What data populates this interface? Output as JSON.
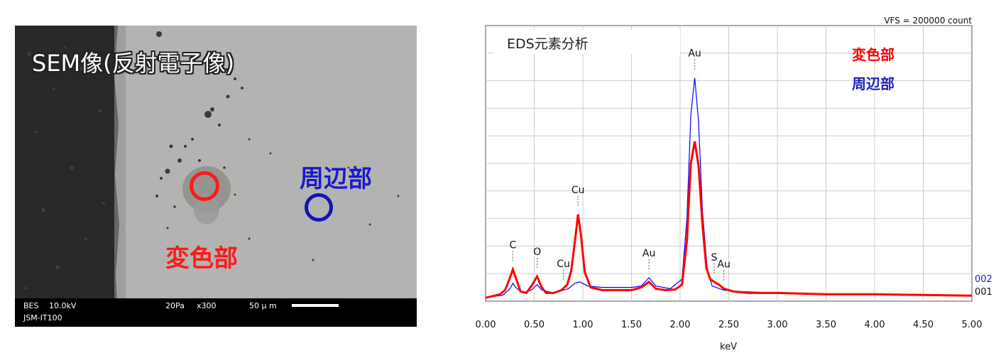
{
  "sem": {
    "title": "SEM像(反射電子像)",
    "label_discolored": "変色部",
    "label_peripheral": "周辺部",
    "info_mode": "BES",
    "info_kv": "10.0kV",
    "info_model": "JSM-IT100",
    "info_pressure": "20Pa",
    "info_mag": "x300",
    "info_scale": "50 μ m",
    "colors": {
      "discolored": "#ff1a1a",
      "peripheral": "#1414b4"
    }
  },
  "eds": {
    "title": "EDS元素分析",
    "vfs": "VFS = 200000 count",
    "legend_discolored": "変色部",
    "legend_peripheral": "周辺部",
    "trace_label_peripheral": "002",
    "trace_label_discolored": "001"
  },
  "chart_data": {
    "type": "line",
    "title": "EDS元素分析",
    "xlabel": "keV",
    "ylabel": "",
    "xlim": [
      0,
      5
    ],
    "ylim": [
      0,
      200000
    ],
    "grid": true,
    "x_ticks": [
      "0.00",
      "0.50",
      "1.00",
      "1.50",
      "2.00",
      "2.50",
      "3.00",
      "3.50",
      "4.00",
      "4.50",
      "5.00"
    ],
    "legend": {
      "position": "top-right",
      "entries": [
        "変色部",
        "周辺部"
      ]
    },
    "annotations": [
      {
        "text": "C",
        "x": 0.28
      },
      {
        "text": "O",
        "x": 0.53
      },
      {
        "text": "Cu",
        "x": 0.8
      },
      {
        "text": "Cu",
        "x": 0.95
      },
      {
        "text": "Au",
        "x": 1.68
      },
      {
        "text": "Au",
        "x": 2.15
      },
      {
        "text": "S",
        "x": 2.35
      },
      {
        "text": "Au",
        "x": 2.45
      }
    ],
    "series": [
      {
        "name": "変色部",
        "color": "#ff0000",
        "points": [
          [
            0,
            2400
          ],
          [
            0.15,
            5000
          ],
          [
            0.2,
            8000
          ],
          [
            0.25,
            17000
          ],
          [
            0.28,
            23000
          ],
          [
            0.31,
            17000
          ],
          [
            0.36,
            7000
          ],
          [
            0.42,
            6000
          ],
          [
            0.48,
            12000
          ],
          [
            0.53,
            18000
          ],
          [
            0.57,
            11000
          ],
          [
            0.62,
            6000
          ],
          [
            0.7,
            6000
          ],
          [
            0.78,
            8000
          ],
          [
            0.84,
            12000
          ],
          [
            0.88,
            22000
          ],
          [
            0.92,
            44000
          ],
          [
            0.95,
            63000
          ],
          [
            0.98,
            48000
          ],
          [
            1.02,
            21000
          ],
          [
            1.08,
            10000
          ],
          [
            1.2,
            8000
          ],
          [
            1.4,
            8000
          ],
          [
            1.5,
            8000
          ],
          [
            1.6,
            10000
          ],
          [
            1.68,
            14000
          ],
          [
            1.75,
            9000
          ],
          [
            1.85,
            8000
          ],
          [
            1.95,
            8500
          ],
          [
            2.02,
            12000
          ],
          [
            2.07,
            44000
          ],
          [
            2.11,
            100000
          ],
          [
            2.15,
            116000
          ],
          [
            2.19,
            98000
          ],
          [
            2.23,
            55000
          ],
          [
            2.27,
            24000
          ],
          [
            2.31,
            16000
          ],
          [
            2.35,
            14000
          ],
          [
            2.4,
            12000
          ],
          [
            2.45,
            9000
          ],
          [
            2.55,
            7000
          ],
          [
            2.7,
            6000
          ],
          [
            3.0,
            6000
          ],
          [
            3.5,
            5000
          ],
          [
            4.0,
            5000
          ],
          [
            4.5,
            4500
          ],
          [
            5.0,
            4000
          ]
        ]
      },
      {
        "name": "周辺部",
        "color": "#0000ff",
        "points": [
          [
            0,
            2400
          ],
          [
            0.18,
            4500
          ],
          [
            0.25,
            9000
          ],
          [
            0.28,
            13000
          ],
          [
            0.31,
            10000
          ],
          [
            0.38,
            6000
          ],
          [
            0.47,
            8000
          ],
          [
            0.53,
            12000
          ],
          [
            0.58,
            8000
          ],
          [
            0.7,
            6000
          ],
          [
            0.85,
            9000
          ],
          [
            0.92,
            13000
          ],
          [
            0.97,
            14000
          ],
          [
            1.05,
            11000
          ],
          [
            1.2,
            10000
          ],
          [
            1.4,
            10000
          ],
          [
            1.5,
            10000
          ],
          [
            1.6,
            11000
          ],
          [
            1.68,
            17000
          ],
          [
            1.75,
            11000
          ],
          [
            1.9,
            9000
          ],
          [
            2.02,
            16000
          ],
          [
            2.07,
            60000
          ],
          [
            2.11,
            135000
          ],
          [
            2.15,
            162000
          ],
          [
            2.19,
            130000
          ],
          [
            2.23,
            65000
          ],
          [
            2.28,
            22000
          ],
          [
            2.33,
            11000
          ],
          [
            2.45,
            8000
          ],
          [
            2.6,
            7000
          ],
          [
            3.0,
            6000
          ],
          [
            3.5,
            5000
          ],
          [
            4.0,
            5000
          ],
          [
            4.5,
            4500
          ],
          [
            5.0,
            4000
          ]
        ]
      }
    ]
  }
}
